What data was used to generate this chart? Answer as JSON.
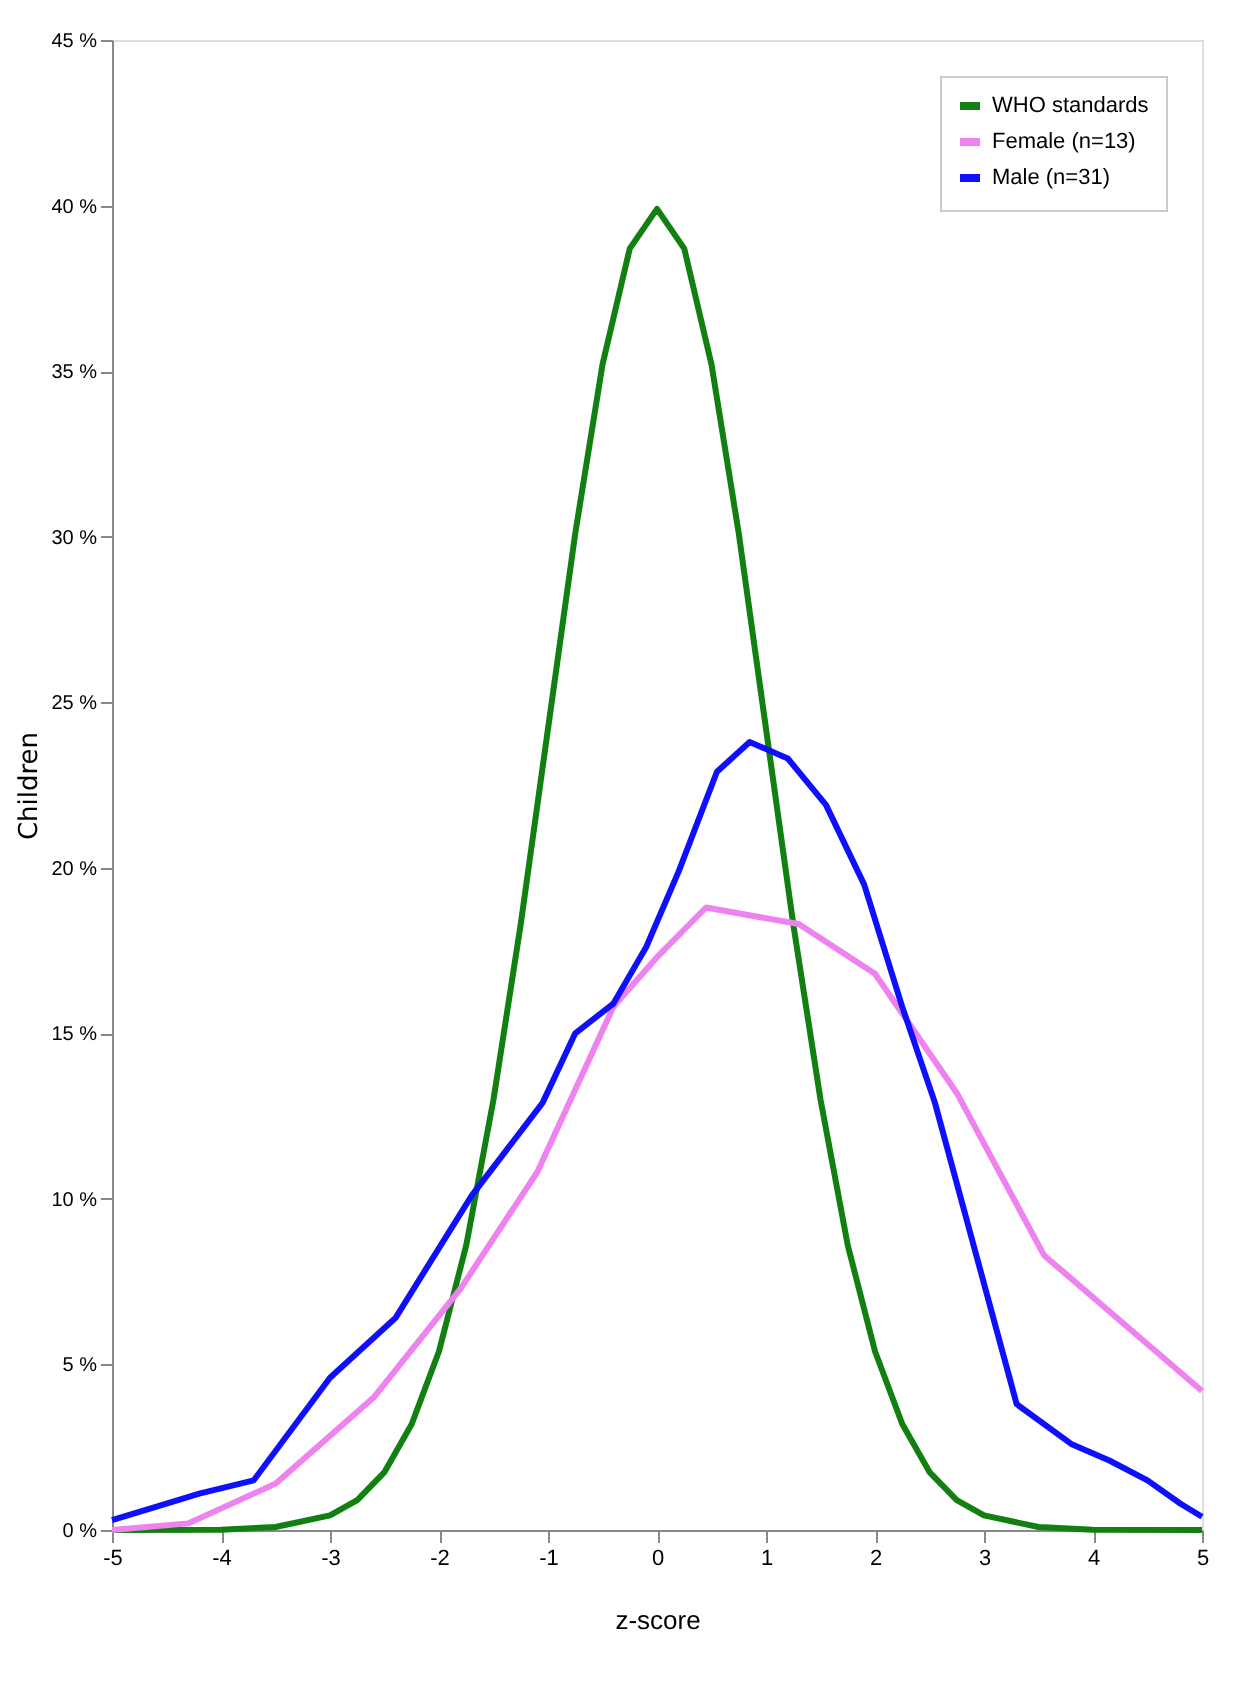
{
  "chart_data": {
    "type": "line",
    "xlabel": "z-score",
    "ylabel": "Children",
    "xlim": [
      -5,
      5
    ],
    "xticks": [
      -5,
      -4,
      -3,
      -2,
      -1,
      0,
      1,
      2,
      3,
      4,
      5
    ],
    "ylim": [
      0,
      45
    ],
    "yticks": [
      {
        "value": 0,
        "label": "0 %"
      },
      {
        "value": 5,
        "label": "5 %"
      },
      {
        "value": 10,
        "label": "10 %"
      },
      {
        "value": 15,
        "label": "15 %"
      },
      {
        "value": 20,
        "label": "20 %"
      },
      {
        "value": 25,
        "label": "25 %"
      },
      {
        "value": 30,
        "label": "30 %"
      },
      {
        "value": 35,
        "label": "35 %"
      },
      {
        "value": 40,
        "label": "40 %"
      },
      {
        "value": 45,
        "label": "45 %"
      }
    ],
    "grid": false,
    "legend": "top right",
    "marker": "none",
    "line_style": "solid",
    "series": [
      {
        "name": "WHO standards",
        "color": "#118011",
        "x": [
          -5,
          -4,
          -3.5,
          -3,
          -2.75,
          -2.5,
          -2.25,
          -2,
          -1.75,
          -1.5,
          -1.25,
          -1,
          -0.75,
          -0.5,
          -0.25,
          0,
          0.25,
          0.5,
          0.75,
          1,
          1.25,
          1.5,
          1.75,
          2,
          2.25,
          2.5,
          2.75,
          3,
          3.5,
          4,
          5
        ],
        "values": [
          0,
          0.01,
          0.09,
          0.44,
          0.9,
          1.75,
          3.2,
          5.4,
          8.6,
          13.0,
          18.3,
          24.2,
          30.1,
          35.2,
          38.7,
          39.9,
          38.7,
          35.2,
          30.1,
          24.2,
          18.3,
          13.0,
          8.6,
          5.4,
          3.2,
          1.75,
          0.9,
          0.44,
          0.09,
          0.01,
          0
        ]
      },
      {
        "name": "Female (n=13)",
        "color": "#ee82ee",
        "x": [
          -5,
          -4.3,
          -3.5,
          -2.6,
          -1.8,
          -1.1,
          -0.4,
          0,
          0.45,
          1.3,
          2,
          2.75,
          3.55,
          5
        ],
        "values": [
          0,
          0.2,
          1.4,
          4.0,
          7.3,
          10.8,
          15.8,
          17.3,
          18.8,
          18.3,
          16.8,
          13.2,
          8.3,
          4.2
        ]
      },
      {
        "name": "Male (n=31)",
        "color": "#0f0fff",
        "x": [
          -5,
          -4.5,
          -4.2,
          -3.7,
          -3.0,
          -2.4,
          -1.7,
          -1.05,
          -0.75,
          -0.4,
          -0.1,
          0.2,
          0.55,
          0.85,
          1.2,
          1.55,
          1.9,
          2.25,
          2.55,
          3.3,
          3.8,
          4.15,
          4.5,
          4.8,
          5
        ],
        "values": [
          0.3,
          0.8,
          1.1,
          1.5,
          4.6,
          6.4,
          10.1,
          12.9,
          15.0,
          15.9,
          17.6,
          19.9,
          22.9,
          23.8,
          23.3,
          21.9,
          19.5,
          15.8,
          12.9,
          3.8,
          2.6,
          2.1,
          1.5,
          0.8,
          0.4
        ]
      }
    ]
  }
}
